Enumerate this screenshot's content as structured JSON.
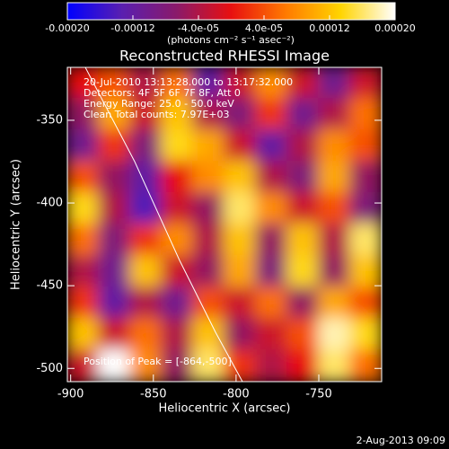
{
  "chart_data": {
    "type": "heatmap",
    "title": "Reconstructed RHESSI Image",
    "xlabel": "Heliocentric X (arcsec)",
    "ylabel": "Heliocentric Y (arcsec)",
    "colorbar_label": "(photons cm⁻² s⁻¹ asec⁻²)",
    "annotations": [
      "20-Jul-2010 13:13:28.000 to 13:17:32.000",
      "Detectors: 4F 5F 6F 7F 8F, Att 0",
      "Energy Range: 25.0 - 50.0 keV",
      "Clean    Total counts: 7.97E+03"
    ],
    "peak_label": "Position of Peak = [-864,-500]",
    "footer": "2-Aug-2013 09:09",
    "xlim": [
      -902,
      -712
    ],
    "ylim": [
      -508,
      -318
    ],
    "xticks": [
      -900,
      -850,
      -800,
      -750
    ],
    "yticks": [
      -350,
      -400,
      -450,
      -500
    ],
    "zlim": [
      -0.0002,
      0.0002
    ],
    "zticks": [
      {
        "value": -0.0002,
        "label": "-0.00020"
      },
      -0.00012,
      {
        "value": -4e-05,
        "label": "-4.0e-05"
      },
      {
        "value": 4e-05,
        "label": "4.0e-05"
      },
      0.00012,
      {
        "value": 0.0002,
        "label": "0.00020"
      }
    ],
    "colorscale": [
      "#0000ff",
      "#5a1fb0",
      "#8a1a6a",
      "#e81010",
      "#ff7a00",
      "#ffd400",
      "#ffffff"
    ],
    "z": [
      [
        0,
        4e-05,
        -4e-05,
        6e-05,
        -0.00012,
        -2e-05,
        8e-05,
        -2e-05,
        -0.0001,
        -2e-05
      ],
      [
        -6e-05,
        0.0001,
        -2e-05,
        0.00012,
        -4e-05,
        -8e-05,
        2e-05,
        -0.0001,
        -4e-05,
        6e-05
      ],
      [
        -0.0001,
        2e-05,
        -8e-05,
        0.00014,
        0.0001,
        -2e-05,
        -0.00012,
        -4e-05,
        8e-05,
        4e-05
      ],
      [
        4e-05,
        -6e-05,
        -0.00012,
        0,
        8e-05,
        0.00012,
        -4e-05,
        -8e-05,
        0.0001,
        -6e-05
      ],
      [
        0.00014,
        -4e-05,
        -0.00014,
        -2e-05,
        -6e-05,
        0.00016,
        8e-05,
        -2e-05,
        4e-05,
        -8e-05
      ],
      [
        6e-05,
        -8e-05,
        2e-05,
        8e-05,
        -4e-05,
        0.00012,
        -6e-05,
        0.00012,
        -4e-05,
        0.00016
      ],
      [
        -4e-05,
        -0.0001,
        0.00012,
        -2e-05,
        -6e-05,
        0.0001,
        -8e-05,
        0.00014,
        -6e-05,
        0.00012
      ],
      [
        2e-05,
        -0.00012,
        -4e-05,
        -0.0001,
        4e-05,
        -2e-05,
        6e-05,
        -6e-05,
        0.0001,
        4e-05
      ],
      [
        0.00012,
        -2e-05,
        6e-05,
        -4e-05,
        0.00012,
        -6e-05,
        -2e-05,
        4e-05,
        0.00018,
        0.00014
      ],
      [
        -2e-05,
        0.0002,
        8e-05,
        -6e-05,
        0.00016,
        2e-05,
        -4e-05,
        0,
        0.00016,
        6e-05
      ]
    ]
  }
}
